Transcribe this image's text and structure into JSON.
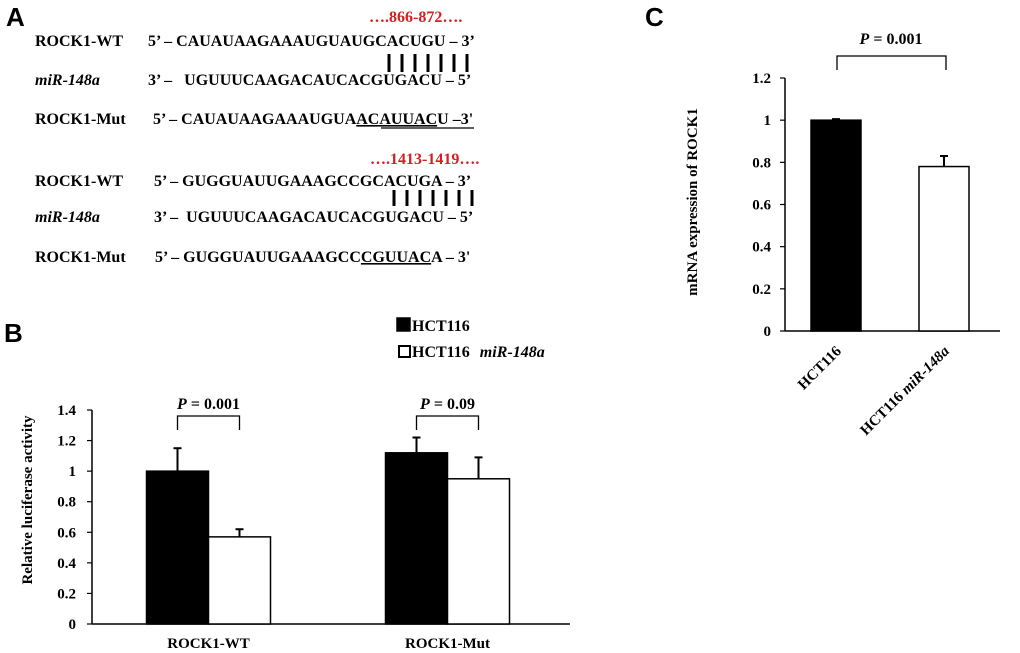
{
  "panels": {
    "a": "A",
    "b": "B",
    "c": "C"
  },
  "sequences": {
    "site1": {
      "position": "….866-872….",
      "rows": [
        {
          "name": "ROCK1-WT",
          "seq_pre": "5’ – CAUAUAAGAAAUGUAUGCACUGU – 3’",
          "seq_ul": "",
          "seq_post": ""
        },
        {
          "name": "miR-148a",
          "seq_pre": "3’ –   UGUUUCAAGACAUCACGUGACU – 5’",
          "seq_ul": "",
          "seq_post": ""
        },
        {
          "name": "ROCK1-Mut",
          "seq_pre": "5’ – CAUAUAAGAAAUGUA",
          "seq_ul": "ACAUUAC",
          "seq_post": "U –3'"
        }
      ]
    },
    "site2": {
      "position": "….1413-1419….",
      "rows": [
        {
          "name": "ROCK1-WT",
          "seq_pre": "5’ – GUGGUAUUGAAAGCCGCACUGA – 3’",
          "seq_ul": "",
          "seq_post": ""
        },
        {
          "name": "miR-148a",
          "seq_pre": "3’ –  UGUUUCAAGACAUCACGUGACU – 5’",
          "seq_ul": "",
          "seq_post": ""
        },
        {
          "name": "ROCK1-Mut",
          "seq_pre": "5’ – GUGGUAUUGAAAGCC",
          "seq_ul": "CGUUAC",
          "seq_post": "A – 3'"
        }
      ]
    }
  },
  "chart_data": [
    {
      "panel": "B",
      "type": "bar",
      "categories": [
        "ROCK1-WT",
        "ROCK1-Mut"
      ],
      "series": [
        {
          "name": "HCT116",
          "values": [
            1.0,
            1.12
          ],
          "errors": [
            0.15,
            0.1
          ],
          "color": "#000000"
        },
        {
          "name_parts": [
            "HCT116",
            "miR-148a"
          ],
          "values": [
            0.57,
            0.95
          ],
          "errors": [
            0.05,
            0.14
          ],
          "color": "#ffffff"
        }
      ],
      "ylabel": "Relative luciferase activity",
      "ylim": [
        0,
        1.4
      ],
      "yticks": [
        "0",
        "0.2",
        "0.4",
        "0.6",
        "0.8",
        "1",
        "1.2",
        "1.4"
      ],
      "annotations": [
        "P = 0.001",
        "P = 0.09"
      ],
      "legend": "top"
    },
    {
      "panel": "C",
      "type": "bar",
      "categories": [
        "HCT116",
        "HCT116 miR-148a"
      ],
      "values": [
        1.0,
        0.78
      ],
      "errors": [
        0.005,
        0.05
      ],
      "colors": [
        "#000000",
        "#ffffff"
      ],
      "ylabel": "mRNA expression of ROCK1",
      "ylim": [
        0,
        1.2
      ],
      "yticks": [
        "0",
        "0.2",
        "0.4",
        "0.6",
        "0.8",
        "1",
        "1.2"
      ],
      "annotations": [
        "P = 0.001"
      ]
    }
  ]
}
